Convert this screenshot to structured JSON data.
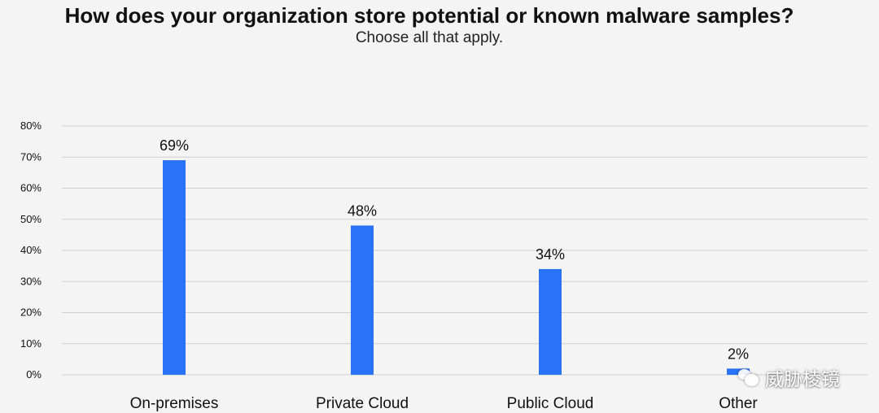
{
  "header": {
    "title": "How does your organization store potential or known malware samples?",
    "subtitle": "Choose all that apply."
  },
  "watermark": {
    "text": "威胁棱镜",
    "icon": "wechat-icon"
  },
  "colors": {
    "bar": "#2a72f6",
    "grid": "#cfcfcf",
    "text": "#111111"
  },
  "chart_data": {
    "type": "bar",
    "title": "How does your organization store potential or known malware samples?",
    "subtitle": "Choose all that apply.",
    "categories": [
      "On-premises",
      "Private Cloud",
      "Public Cloud",
      "Other"
    ],
    "values": [
      69,
      48,
      34,
      2
    ],
    "data_labels": [
      "69%",
      "48%",
      "34%",
      "2%"
    ],
    "y_ticks": [
      0,
      10,
      20,
      30,
      40,
      50,
      60,
      70,
      80
    ],
    "y_tick_labels": [
      "0%",
      "10%",
      "20%",
      "30%",
      "40%",
      "50%",
      "60%",
      "70%",
      "80%"
    ],
    "ylim": [
      0,
      80
    ],
    "grid": true,
    "legend": "none",
    "xlabel": "",
    "ylabel": ""
  }
}
